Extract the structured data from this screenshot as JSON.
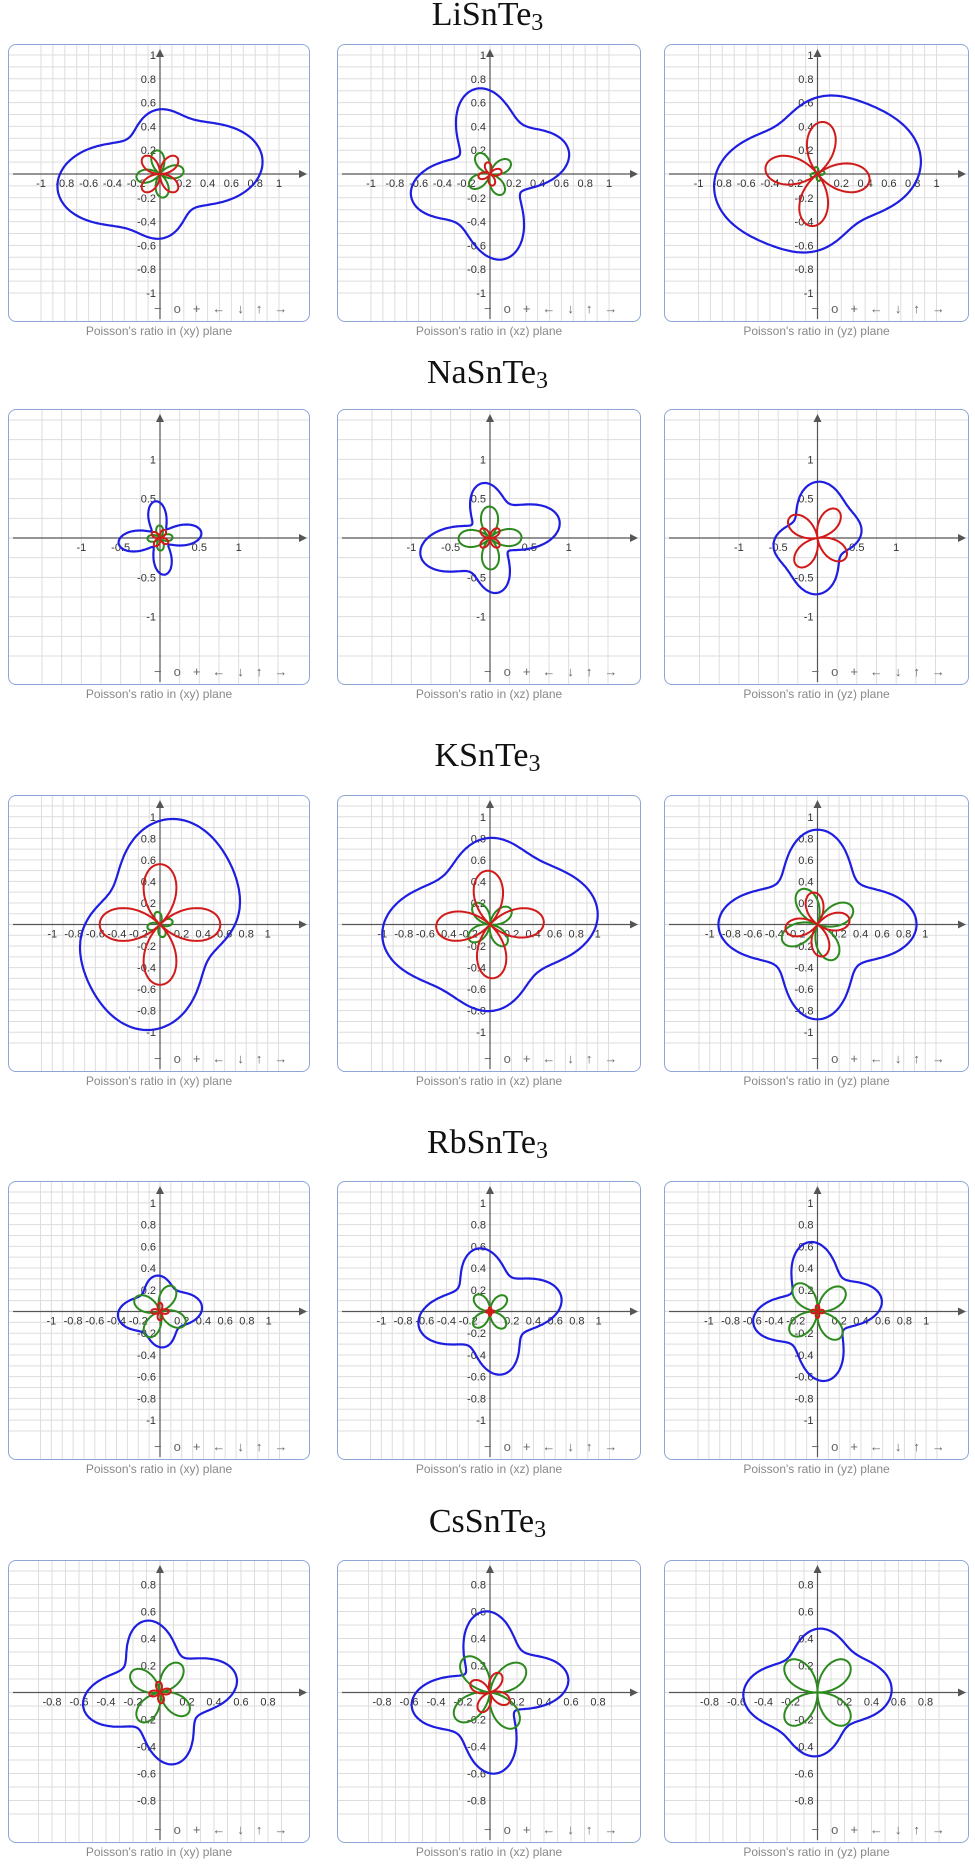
{
  "colors": {
    "total": "#1e1ee0",
    "min": "#d11a1a",
    "max": "#2d8a1f",
    "grid": "#dddddd",
    "axis": "#555555",
    "border": "#8ea6d6"
  },
  "controls": [
    "−",
    "o",
    "+",
    "←",
    "↓",
    "↑",
    "→"
  ],
  "sections": [
    {
      "title": "LiSnTe",
      "sub": "3"
    },
    {
      "title": "NaSnTe",
      "sub": "3"
    },
    {
      "title": "KSnTe",
      "sub": "3"
    },
    {
      "title": "RbSnTe",
      "sub": "3"
    },
    {
      "title": "CsSnTe",
      "sub": "3"
    }
  ],
  "captions": {
    "xy": "Poisson's ratio in (xy) plane",
    "xz": "Poisson's ratio in (xz) plane",
    "yz": "Poisson's ratio in (yz) plane"
  },
  "chart_data": [
    {
      "type": "line",
      "panel": "LiSnTe3-xy",
      "range": 1.0,
      "ticks": [
        "-1",
        "-0.8",
        "-0.6",
        "-0.4",
        "-0.2",
        "0.2",
        "0.4",
        "0.6",
        "0.8",
        "1"
      ],
      "tickvals": [
        -1,
        -0.8,
        -0.6,
        -0.4,
        -0.2,
        0.2,
        0.4,
        0.6,
        0.8,
        1
      ],
      "curves": {
        "total": {
          "r0": 0.6,
          "a": [
            0.18,
            0.1
          ],
          "p": [
            0.6,
            0.4
          ]
        },
        "min": {
          "r0": 0.05,
          "a": [
            0.1
          ],
          "p": [
            1.57
          ]
        },
        "max": {
          "r0": 0.1,
          "a": [
            0.1
          ],
          "p": [
            0.3
          ]
        }
      }
    },
    {
      "type": "line",
      "panel": "LiSnTe3-xz",
      "range": 1.0,
      "ticks": [
        "-1",
        "-0.8",
        "-0.6",
        "-0.4",
        "-0.2",
        "0.2",
        "0.4",
        "0.6",
        "0.8",
        "1"
      ],
      "tickvals": [
        -1,
        -0.8,
        -0.6,
        -0.4,
        -0.2,
        0.2,
        0.4,
        0.6,
        0.8,
        1
      ],
      "curves": {
        "total": {
          "r0": 0.55,
          "a": [
            0.1,
            0.15
          ],
          "p": [
            2.2,
            0.9
          ]
        },
        "min": {
          "r0": 0.03,
          "a": [
            0.05
          ],
          "p": [
            0.5
          ]
        },
        "max": {
          "r0": 0.1,
          "a": [
            0.1
          ],
          "p": [
            1.1
          ]
        }
      }
    },
    {
      "type": "line",
      "panel": "LiSnTe3-yz",
      "range": 1.0,
      "ticks": [
        "-1",
        "-0.8",
        "-0.6",
        "-0.4",
        "-0.2",
        "0.2",
        "0.4",
        "0.6",
        "0.8",
        "1"
      ],
      "tickvals": [
        -1,
        -0.8,
        -0.6,
        -0.4,
        -0.2,
        0.2,
        0.4,
        0.6,
        0.8,
        1
      ],
      "curves": {
        "total": {
          "r0": 0.7,
          "a": [
            0.15,
            0.05
          ],
          "p": [
            0.8,
            0.2
          ]
        },
        "min": {
          "r0": 0.22,
          "a": [
            0.22
          ],
          "p": [
            2.9
          ]
        },
        "max": {
          "r0": 0.03,
          "a": [
            0.03
          ],
          "p": [
            0.5
          ]
        }
      }
    },
    {
      "type": "line",
      "panel": "NaSnTe3-xy",
      "range": 1.5,
      "ticks": [
        "-1",
        "-0.5",
        "0.5",
        "1"
      ],
      "tickvals": [
        -1,
        -0.5,
        0.5,
        1
      ],
      "curves": {
        "total": {
          "r0": 0.32,
          "a": [
            0.03,
            0.18
          ],
          "p": [
            0.3,
            0.5
          ]
        },
        "min": {
          "r0": 0.06,
          "a": [
            0.06
          ],
          "p": [
            2.0
          ]
        },
        "max": {
          "r0": 0.12,
          "a": [
            0.08
          ],
          "p": [
            0.1
          ]
        }
      }
    },
    {
      "type": "line",
      "panel": "NaSnTe3-xz",
      "range": 1.5,
      "ticks": [
        "-1",
        "-0.5",
        "0.5",
        "1"
      ],
      "tickvals": [
        -1,
        -0.5,
        0.5,
        1
      ],
      "curves": {
        "total": {
          "r0": 0.6,
          "a": [
            0.15,
            0.2
          ],
          "p": [
            1.2,
            0.8
          ]
        },
        "min": {
          "r0": 0.08,
          "a": [
            0.08
          ],
          "p": [
            1.57
          ]
        },
        "max": {
          "r0": 0.2,
          "a": [
            0.2
          ],
          "p": [
            0.05
          ]
        }
      }
    },
    {
      "type": "line",
      "panel": "NaSnTe3-yz",
      "range": 1.5,
      "ticks": [
        "-1",
        "-0.5",
        "0.5",
        "1"
      ],
      "tickvals": [
        -1,
        -0.5,
        0.5,
        1
      ],
      "curves": {
        "total": {
          "r0": 0.55,
          "a": [
            0.12,
            0.08
          ],
          "p": [
            2.4,
            0.3
          ]
        },
        "min": {
          "r0": 0.22,
          "a": [
            0.22
          ],
          "p": [
            1.9
          ]
        },
        "max": {
          "r0": 0.0,
          "a": [
            0.0
          ],
          "p": [
            0.0
          ]
        }
      }
    },
    {
      "type": "line",
      "panel": "KSnTe3-xy",
      "range": 1.1,
      "ticks": [
        "-1",
        "-0.8",
        "-0.6",
        "-0.4",
        "-0.2",
        "0.2",
        "0.4",
        "0.6",
        "0.8",
        "1"
      ],
      "tickvals": [
        -1,
        -0.8,
        -0.6,
        -0.4,
        -0.2,
        0.2,
        0.4,
        0.6,
        0.8,
        1
      ],
      "curves": {
        "total": {
          "r0": 0.78,
          "a": [
            0.2,
            0.05
          ],
          "p": [
            2.3,
            0.1
          ]
        },
        "min": {
          "r0": 0.28,
          "a": [
            0.28
          ],
          "p": [
            0.0
          ]
        },
        "max": {
          "r0": 0.06,
          "a": [
            0.06
          ],
          "p": [
            0.5
          ]
        }
      }
    },
    {
      "type": "line",
      "panel": "KSnTe3-xz",
      "range": 1.1,
      "ticks": [
        "-1",
        "-0.8",
        "-0.6",
        "-0.4",
        "-0.2",
        "0.2",
        "0.4",
        "0.6",
        "0.8",
        "1"
      ],
      "tickvals": [
        -1,
        -0.8,
        -0.6,
        -0.4,
        -0.2,
        0.2,
        0.4,
        0.6,
        0.8,
        1
      ],
      "curves": {
        "total": {
          "r0": 0.8,
          "a": [
            0.12,
            0.1
          ],
          "p": [
            0.7,
            0.3
          ]
        },
        "min": {
          "r0": 0.25,
          "a": [
            0.25
          ],
          "p": [
            0.1
          ]
        },
        "max": {
          "r0": 0.12,
          "a": [
            0.12
          ],
          "p": [
            1.3
          ]
        }
      }
    },
    {
      "type": "line",
      "panel": "KSnTe3-yz",
      "range": 1.1,
      "ticks": [
        "-1",
        "-0.8",
        "-0.6",
        "-0.4",
        "-0.2",
        "0.2",
        "0.4",
        "0.6",
        "0.8",
        "1"
      ],
      "tickvals": [
        -1,
        -0.8,
        -0.6,
        -0.4,
        -0.2,
        0.2,
        0.4,
        0.6,
        0.8,
        1
      ],
      "curves": {
        "total": {
          "r0": 0.72,
          "a": [
            0.02,
            0.18
          ],
          "p": [
            0.2,
            0.0
          ]
        },
        "min": {
          "r0": 0.15,
          "a": [
            0.15
          ],
          "p": [
            0.3
          ]
        },
        "max": {
          "r0": 0.18,
          "a": [
            0.18
          ],
          "p": [
            0.9
          ]
        }
      }
    },
    {
      "type": "line",
      "panel": "RbSnTe3-xy",
      "range": 1.1,
      "ticks": [
        "-1",
        "-0.8",
        "-0.6",
        "-0.4",
        "-0.2",
        "0.2",
        "0.4",
        "0.6",
        "0.8",
        "1"
      ],
      "tickvals": [
        -1,
        -0.8,
        -0.6,
        -0.4,
        -0.2,
        0.2,
        0.4,
        0.6,
        0.8,
        1
      ],
      "curves": {
        "total": {
          "r0": 0.3,
          "a": [
            0.03,
            0.06
          ],
          "p": [
            0.5,
            0.4
          ]
        },
        "min": {
          "r0": 0.04,
          "a": [
            0.04
          ],
          "p": [
            0.0
          ]
        },
        "max": {
          "r0": 0.13,
          "a": [
            0.13
          ],
          "p": [
            2.2
          ]
        }
      }
    },
    {
      "type": "line",
      "panel": "RbSnTe3-xz",
      "range": 1.1,
      "ticks": [
        "-1",
        "-0.8",
        "-0.6",
        "-0.4",
        "-0.2",
        "0.2",
        "0.4",
        "0.6",
        "0.8",
        "1"
      ],
      "tickvals": [
        -1,
        -0.8,
        -0.6,
        -0.4,
        -0.2,
        0.2,
        0.4,
        0.6,
        0.8,
        1
      ],
      "curves": {
        "total": {
          "r0": 0.5,
          "a": [
            0.04,
            0.13
          ],
          "p": [
            0.5,
            0.8
          ]
        },
        "min": {
          "r0": 0.02,
          "a": [
            0.02
          ],
          "p": [
            0.0
          ]
        },
        "max": {
          "r0": 0.12,
          "a": [
            0.1
          ],
          "p": [
            1.5
          ]
        }
      }
    },
    {
      "type": "line",
      "panel": "RbSnTe3-yz",
      "range": 1.1,
      "ticks": [
        "-1",
        "-0.8",
        "-0.6",
        "-0.4",
        "-0.2",
        "0.2",
        "0.4",
        "0.6",
        "0.8",
        "1"
      ],
      "tickvals": [
        -1,
        -0.8,
        -0.6,
        -0.4,
        -0.2,
        0.2,
        0.4,
        0.6,
        0.8,
        1
      ],
      "curves": {
        "total": {
          "r0": 0.48,
          "a": [
            0.05,
            0.14
          ],
          "p": [
            2.3,
            0.6
          ]
        },
        "min": {
          "r0": 0.03,
          "a": [
            0.03
          ],
          "p": [
            0.0
          ]
        },
        "max": {
          "r0": 0.18,
          "a": [
            0.16
          ],
          "p": [
            1.4
          ]
        }
      }
    },
    {
      "type": "line",
      "panel": "CsSnTe3-xy",
      "range": 0.9,
      "ticks": [
        "-0.8",
        "-0.6",
        "-0.4",
        "-0.2",
        "0.2",
        "0.4",
        "0.6",
        "0.8"
      ],
      "tickvals": [
        -0.8,
        -0.6,
        -0.4,
        -0.2,
        0.2,
        0.4,
        0.6,
        0.8
      ],
      "curves": {
        "total": {
          "r0": 0.44,
          "a": [
            0.02,
            0.12
          ],
          "p": [
            0.0,
            0.8
          ]
        },
        "min": {
          "r0": 0.04,
          "a": [
            0.04
          ],
          "p": [
            0.3
          ]
        },
        "max": {
          "r0": 0.13,
          "a": [
            0.13
          ],
          "p": [
            1.9
          ]
        }
      }
    },
    {
      "type": "line",
      "panel": "CsSnTe3-xz",
      "range": 0.9,
      "ticks": [
        "-0.8",
        "-0.6",
        "-0.4",
        "-0.2",
        "0.2",
        "0.4",
        "0.6",
        "0.8"
      ],
      "tickvals": [
        -0.8,
        -0.6,
        -0.4,
        -0.2,
        0.2,
        0.4,
        0.6,
        0.8
      ],
      "curves": {
        "total": {
          "r0": 0.45,
          "a": [
            0.08,
            0.14
          ],
          "p": [
            1.9,
            0.5
          ]
        },
        "min": {
          "r0": 0.08,
          "a": [
            0.08
          ],
          "p": [
            2.2
          ]
        },
        "max": {
          "r0": 0.18,
          "a": [
            0.16
          ],
          "p": [
            1.3
          ]
        }
      }
    },
    {
      "type": "line",
      "panel": "CsSnTe3-yz",
      "range": 0.9,
      "ticks": [
        "-0.8",
        "-0.6",
        "-0.4",
        "-0.2",
        "0.2",
        "0.4",
        "0.6",
        "0.8"
      ],
      "tickvals": [
        -0.8,
        -0.6,
        -0.4,
        -0.2,
        0.2,
        0.4,
        0.6,
        0.8
      ],
      "curves": {
        "total": {
          "r0": 0.44,
          "a": [
            0.05,
            0.07
          ],
          "p": [
            0.7,
            0.0
          ]
        },
        "min": {
          "r0": 0.0,
          "a": [
            0.0
          ],
          "p": [
            0.0
          ]
        },
        "max": {
          "r0": 0.16,
          "a": [
            0.16
          ],
          "p": [
            1.57
          ]
        }
      }
    }
  ]
}
